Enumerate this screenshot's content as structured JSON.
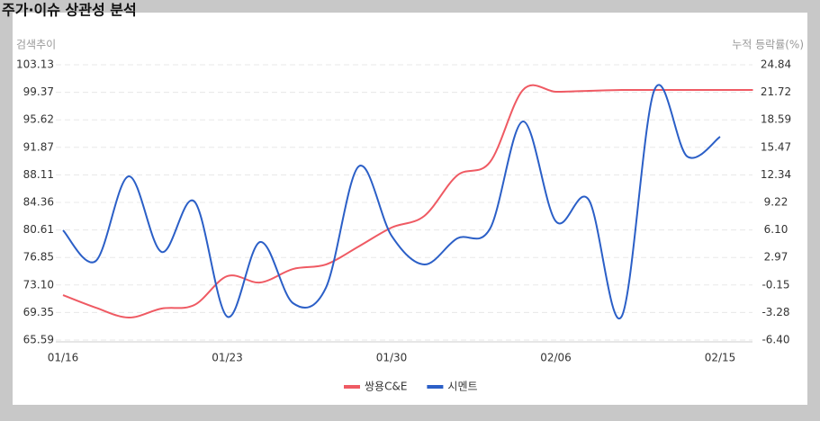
{
  "chart_data": {
    "type": "line",
    "title": "주가·이슈 상관성 분석",
    "y_label": "검색추이",
    "y2_label": "누적 등락률(%)",
    "categories": [
      "01/16",
      null,
      null,
      null,
      null,
      "01/23",
      null,
      null,
      null,
      null,
      "01/30",
      null,
      null,
      null,
      null,
      "02/06",
      null,
      null,
      null,
      null,
      "02/15",
      null
    ],
    "series": [
      {
        "name": "쌍용C&E",
        "color": "#ef5a63",
        "axis": "y2",
        "values": [
          -1.3,
          -2.73,
          -3.85,
          -2.83,
          -2.42,
          0.85,
          0.13,
          1.66,
          2.17,
          4.22,
          6.36,
          7.69,
          12.28,
          13.81,
          21.98,
          21.78,
          21.88,
          21.98,
          21.98,
          21.98,
          21.98,
          21.98
        ]
      },
      {
        "name": "시멘트",
        "color": "#2b5fc7",
        "axis": "y",
        "values": [
          80.56,
          76.38,
          87.92,
          77.61,
          84.48,
          68.78,
          78.96,
          70.62,
          72.7,
          89.27,
          79.82,
          75.89,
          79.45,
          80.8,
          95.4,
          81.78,
          84.73,
          68.78,
          99.69,
          90.62,
          93.32,
          null
        ]
      }
    ],
    "ylim": [
      65.59,
      103.13
    ],
    "yticks": [
      103.13,
      99.37,
      95.62,
      91.87,
      88.11,
      84.36,
      80.61,
      76.85,
      {
        "value": 73.1,
        "label": "73.10"
      },
      69.35,
      65.59
    ],
    "y2lim": [
      -6.4,
      24.84
    ],
    "y2ticks": [
      24.84,
      21.72,
      18.59,
      15.47,
      12.34,
      9.22,
      {
        "value": 6.1,
        "label": "6.10"
      },
      2.97,
      -0.15,
      -3.28,
      {
        "value": -6.4,
        "label": "-6.40"
      }
    ],
    "grid": true,
    "legend": "bottom"
  }
}
